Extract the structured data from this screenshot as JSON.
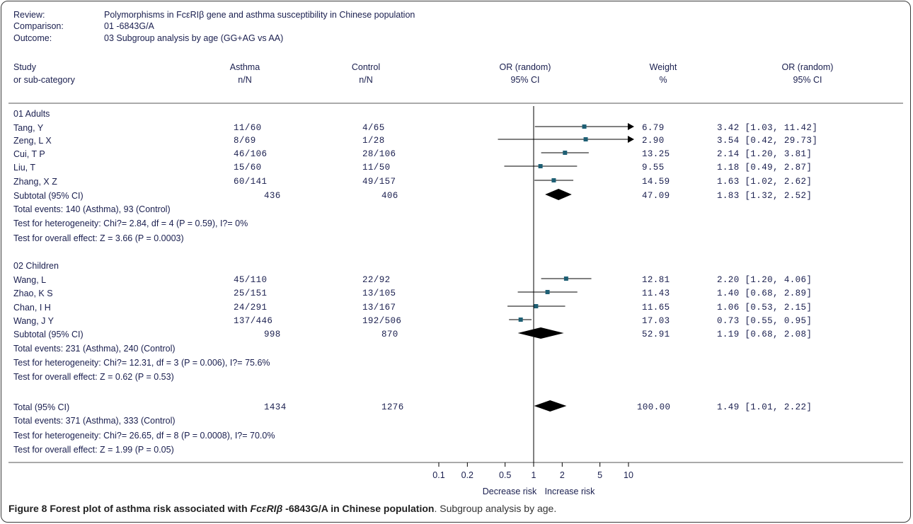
{
  "header": {
    "review_label": "Review:",
    "review_value": "Polymorphisms in FcεRIβ gene and asthma susceptibility in Chinese population",
    "comparison_label": "Comparison:",
    "comparison_value": "01 -6843G/A",
    "outcome_label": "Outcome:",
    "outcome_value": "03 Subgroup analysis by age (GG+AG vs AA)"
  },
  "columns": {
    "study_1": "Study",
    "study_2": "or sub-category",
    "asthma_1": "Asthma",
    "asthma_2": "n/N",
    "control_1": "Control",
    "control_2": "n/N",
    "or_plot_1": "OR (random)",
    "or_plot_2": "95% CI",
    "weight_1": "Weight",
    "weight_2": "%",
    "or_text_1": "OR (random)",
    "or_text_2": "95% CI"
  },
  "groups": [
    {
      "title": "01 Adults",
      "studies": [
        {
          "name": "Tang, Y",
          "asthma": "11/60",
          "control": "4/65",
          "weight": "6.79",
          "or_text": "3.42 [1.03, 11.42]"
        },
        {
          "name": "Zeng, L X",
          "asthma": "8/69",
          "control": "1/28",
          "weight": "2.90",
          "or_text": "3.54 [0.42, 29.73]"
        },
        {
          "name": "Cui, T P",
          "asthma": "46/106",
          "control": "28/106",
          "weight": "13.25",
          "or_text": "2.14 [1.20, 3.81]"
        },
        {
          "name": "Liu, T",
          "asthma": "15/60",
          "control": "11/50",
          "weight": "9.55",
          "or_text": "1.18 [0.49, 2.87]"
        },
        {
          "name": "Zhang, X Z",
          "asthma": "60/141",
          "control": "49/157",
          "weight": "14.59",
          "or_text": "1.63 [1.02, 2.62]"
        }
      ],
      "subtotal": {
        "label": "Subtotal (95% CI)",
        "asthma": "436",
        "control": "406",
        "weight": "47.09",
        "or_text": "1.83 [1.32, 2.52]"
      },
      "stats": [
        "Total events: 140 (Asthma), 93 (Control)",
        "Test for heterogeneity: Chi?= 2.84, df = 4 (P = 0.59), I?= 0%",
        "Test for overall effect: Z = 3.66 (P = 0.0003)"
      ]
    },
    {
      "title": "02 Children",
      "studies": [
        {
          "name": "Wang, L",
          "asthma": "45/110",
          "control": "22/92",
          "weight": "12.81",
          "or_text": "2.20 [1.20, 4.06]"
        },
        {
          "name": "Zhao, K S",
          "asthma": "25/151",
          "control": "13/105",
          "weight": "11.43",
          "or_text": "1.40 [0.68, 2.89]"
        },
        {
          "name": "Chan, I H",
          "asthma": "24/291",
          "control": "13/167",
          "weight": "11.65",
          "or_text": "1.06 [0.53, 2.15]"
        },
        {
          "name": "Wang, J Y",
          "asthma": "137/446",
          "control": "192/506",
          "weight": "17.03",
          "or_text": "0.73 [0.55, 0.95]"
        }
      ],
      "subtotal": {
        "label": "Subtotal (95% CI)",
        "asthma": "998",
        "control": "870",
        "weight": "52.91",
        "or_text": "1.19 [0.68, 2.08]"
      },
      "stats": [
        "Total events: 231 (Asthma), 240 (Control)",
        "Test for heterogeneity: Chi?= 12.31, df = 3 (P = 0.006), I?= 75.6%",
        "Test for overall effect: Z = 0.62 (P = 0.53)"
      ]
    }
  ],
  "total": {
    "label": "Total (95% CI)",
    "asthma": "1434",
    "control": "1276",
    "weight": "100.00",
    "or_text": "1.49 [1.01, 2.22]",
    "stats": [
      "Total events: 371 (Asthma), 333 (Control)",
      "Test for heterogeneity: Chi?= 26.65, df = 8 (P = 0.0008), I?= 70.0%",
      "Test for overall effect: Z = 1.99 (P = 0.05)"
    ]
  },
  "axis": {
    "ticks": [
      "0.1",
      "0.2",
      "0.5",
      "1",
      "2",
      "5",
      "10"
    ],
    "left_label": "Decrease risk",
    "right_label": "Increase risk"
  },
  "caption": {
    "bold_prefix": "Figure 8 Forest plot of asthma risk associated with ",
    "bold_italic": "FcεRIβ",
    "bold_suffix": " -6843G/A in Chinese population",
    "rest": ". Subgroup analysis by age."
  },
  "colors": {
    "text": "#1a1f4f",
    "marker": "#1e5f74",
    "lines": "#000000"
  },
  "chart_data": {
    "type": "forest",
    "x_scale": "log",
    "xlim": [
      0.1,
      10
    ],
    "reference_line": 1,
    "rows": [
      {
        "study": "Tang, Y",
        "or": 3.42,
        "lo": 1.03,
        "hi": 11.42,
        "weight": 6.79
      },
      {
        "study": "Zeng, L X",
        "or": 3.54,
        "lo": 0.42,
        "hi": 29.73,
        "weight": 2.9
      },
      {
        "study": "Cui, T P",
        "or": 2.14,
        "lo": 1.2,
        "hi": 3.81,
        "weight": 13.25
      },
      {
        "study": "Liu, T",
        "or": 1.18,
        "lo": 0.49,
        "hi": 2.87,
        "weight": 9.55
      },
      {
        "study": "Zhang, X Z",
        "or": 1.63,
        "lo": 1.02,
        "hi": 2.62,
        "weight": 14.59
      },
      {
        "study": "Subtotal 01 Adults",
        "or": 1.83,
        "lo": 1.32,
        "hi": 2.52,
        "weight": 47.09,
        "summary": true
      },
      {
        "study": "Wang, L",
        "or": 2.2,
        "lo": 1.2,
        "hi": 4.06,
        "weight": 12.81
      },
      {
        "study": "Zhao, K S",
        "or": 1.4,
        "lo": 0.68,
        "hi": 2.89,
        "weight": 11.43
      },
      {
        "study": "Chan, I H",
        "or": 1.06,
        "lo": 0.53,
        "hi": 2.15,
        "weight": 11.65
      },
      {
        "study": "Wang, J Y",
        "or": 0.73,
        "lo": 0.55,
        "hi": 0.95,
        "weight": 17.03
      },
      {
        "study": "Subtotal 02 Children",
        "or": 1.19,
        "lo": 0.68,
        "hi": 2.08,
        "weight": 52.91,
        "summary": true
      },
      {
        "study": "Total",
        "or": 1.49,
        "lo": 1.01,
        "hi": 2.22,
        "weight": 100.0,
        "summary": true
      }
    ]
  }
}
